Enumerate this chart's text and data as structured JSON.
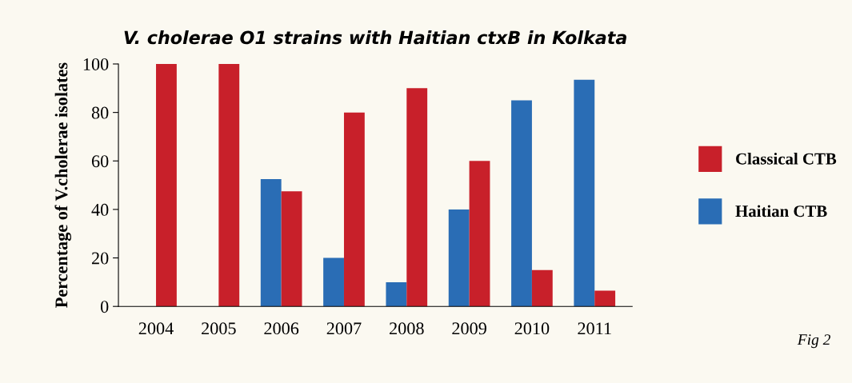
{
  "chart_data": {
    "type": "bar",
    "title": "V. cholerae O1 strains with Haitian ctxB in Kolkata",
    "ylabel": "Percentage of V.cholerae isolates",
    "categories": [
      "2004",
      "2005",
      "2006",
      "2007",
      "2008",
      "2009",
      "2010",
      "2011"
    ],
    "series": [
      {
        "name": "Haitian CTB",
        "color": "#2a6db5",
        "values": [
          0,
          0,
          52.5,
          20,
          10,
          40,
          85,
          93.5
        ]
      },
      {
        "name": "Classical CTB",
        "color": "#c8202a",
        "values": [
          100,
          100,
          47.5,
          80,
          90,
          60,
          15,
          6.5
        ]
      }
    ],
    "ylim": [
      0,
      100
    ],
    "yticks": [
      0,
      20,
      40,
      60,
      80,
      100
    ],
    "grid": false,
    "legend": "right",
    "annotations": [
      "Fig 2"
    ]
  }
}
